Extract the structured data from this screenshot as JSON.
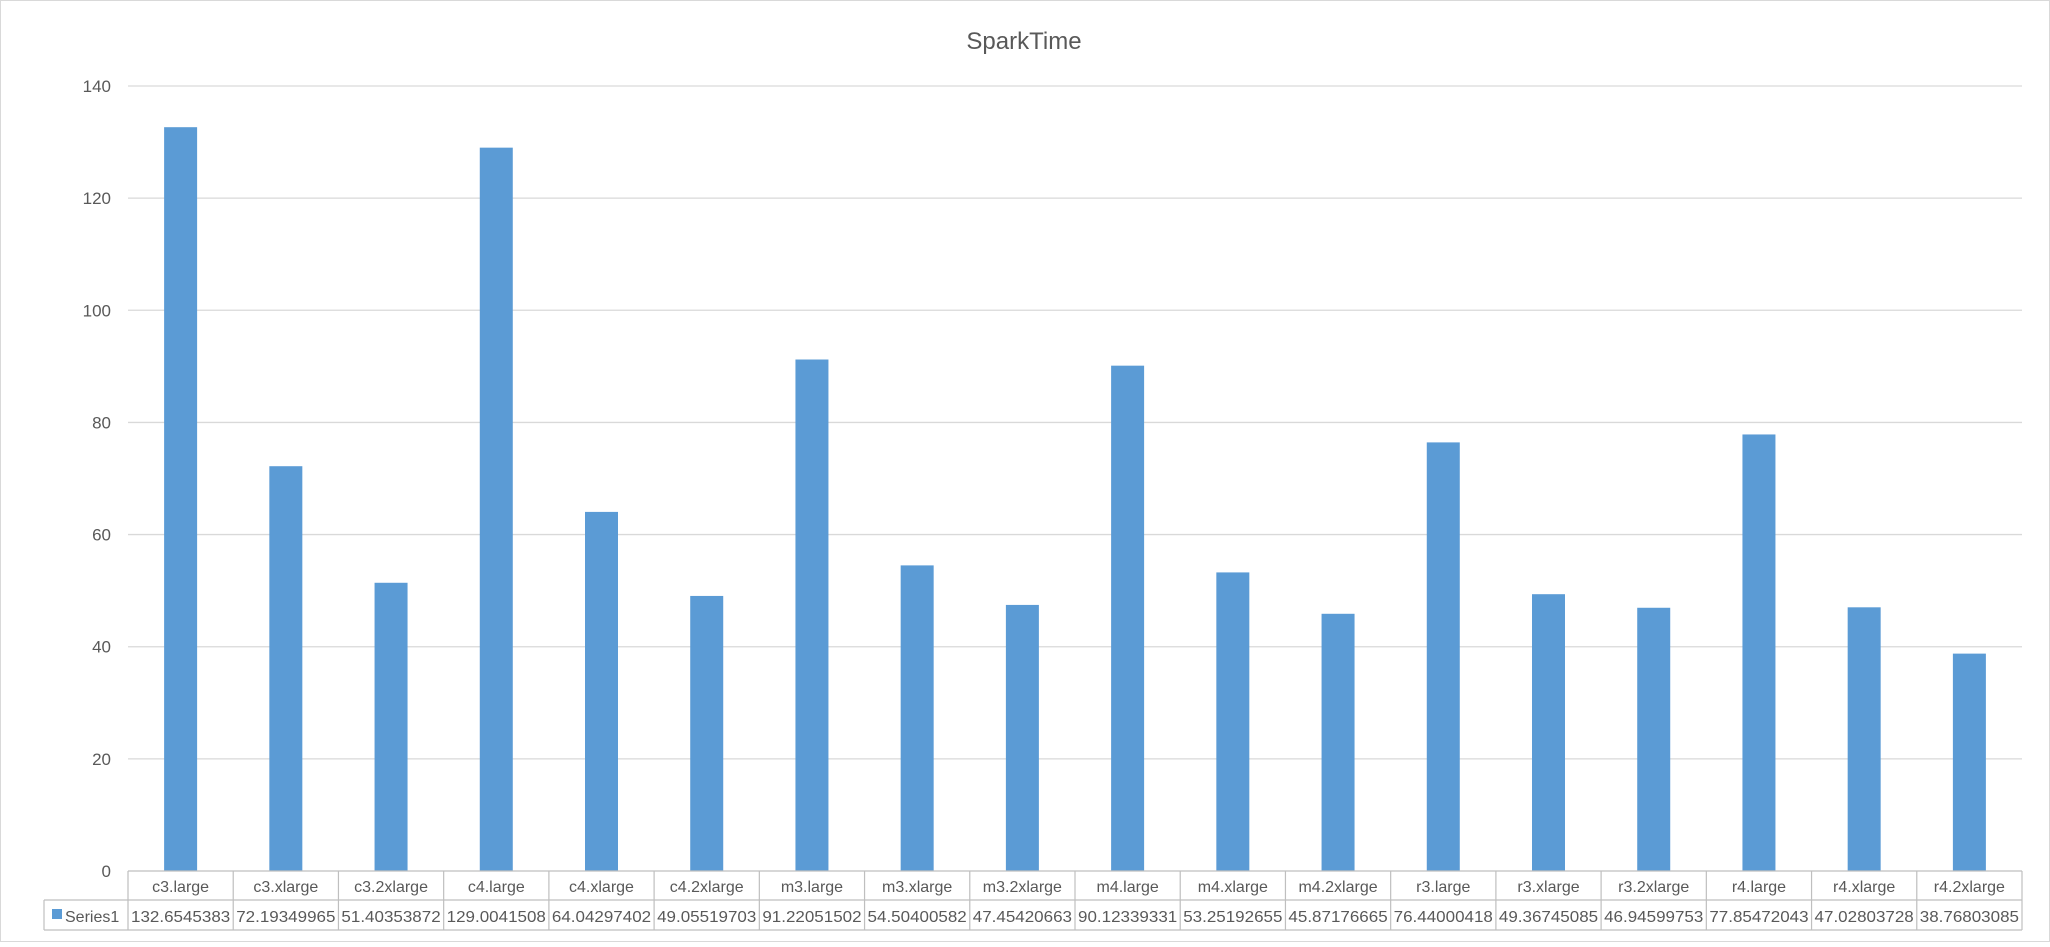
{
  "chart_data": {
    "type": "bar",
    "title": "SparkTime",
    "xlabel": "",
    "ylabel": "",
    "ylim": [
      0,
      140
    ],
    "ytick_step": 20,
    "grid": true,
    "legend": "data-table",
    "bar_color": "#5b9bd5",
    "grid_color": "#d9d9d9",
    "categories": [
      "c3.large",
      "c3.xlarge",
      "c3.2xlarge",
      "c4.large",
      "c4.xlarge",
      "c4.2xlarge",
      "m3.large",
      "m3.xlarge",
      "m3.2xlarge",
      "m4.large",
      "m4.xlarge",
      "m4.2xlarge",
      "r3.large",
      "r3.xlarge",
      "r3.2xlarge",
      "r4.large",
      "r4.xlarge",
      "r4.2xlarge"
    ],
    "series": [
      {
        "name": "Series1",
        "values": [
          132.6545383,
          72.19349965,
          51.40353872,
          129.0041508,
          64.04297402,
          49.05519703,
          91.22051502,
          54.50400582,
          47.45420663,
          90.12339331,
          53.25192655,
          45.87176665,
          76.44000418,
          49.36745085,
          46.94599753,
          77.85472043,
          47.02803728,
          38.76803085
        ],
        "labels": [
          "132.6545383",
          "72.19349965",
          "51.40353872",
          "129.0041508",
          "64.04297402",
          "49.05519703",
          "91.22051502",
          "54.50400582",
          "47.45420663",
          "90.12339331",
          "53.25192655",
          "45.87176665",
          "76.44000418",
          "49.36745085",
          "46.94599753",
          "77.85472043",
          "47.02803728",
          "38.76803085"
        ]
      }
    ]
  }
}
